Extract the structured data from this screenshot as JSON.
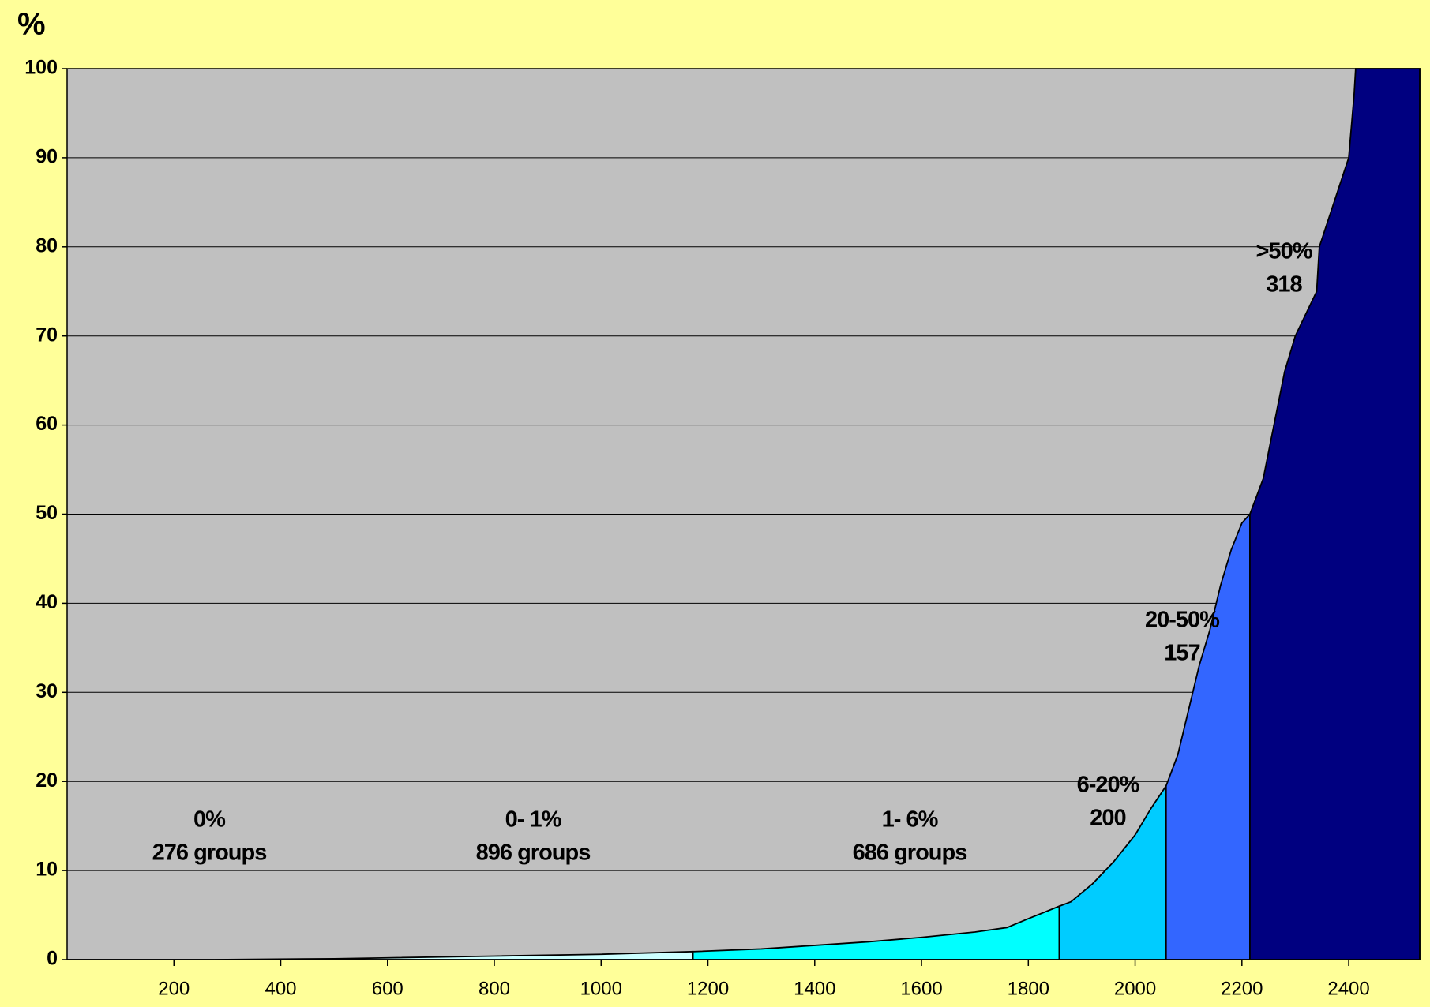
{
  "chart_data": {
    "type": "area",
    "title": "%",
    "xlim": [
      0,
      2533
    ],
    "ylim": [
      0,
      100
    ],
    "xticks": [
      200,
      400,
      600,
      800,
      1000,
      1200,
      1400,
      1600,
      1800,
      2000,
      2200,
      2400
    ],
    "yticks": [
      0,
      10,
      20,
      30,
      40,
      50,
      60,
      70,
      80,
      90,
      100
    ],
    "grid": true,
    "series": [
      {
        "name": "0%",
        "label": "276 groups",
        "color": "#ffffff",
        "x": [
          0,
          276
        ],
        "values": [
          0,
          0
        ]
      },
      {
        "name": "0- 1%",
        "label": "896 groups",
        "color": "#ccffff",
        "x": [
          276,
          500,
          600,
          800,
          1000,
          1172
        ],
        "values": [
          0,
          0.1,
          0.2,
          0.4,
          0.6,
          0.9
        ]
      },
      {
        "name": "1- 6%",
        "label": "686 groups",
        "color": "#00ffff",
        "x": [
          1172,
          1300,
          1400,
          1500,
          1600,
          1700,
          1760,
          1800,
          1858
        ],
        "values": [
          0.9,
          1.2,
          1.6,
          2.0,
          2.5,
          3.1,
          3.6,
          4.6,
          6
        ]
      },
      {
        "name": "6-20%",
        "label": "200",
        "color": "#00ccff",
        "x": [
          1858,
          1880,
          1920,
          1960,
          2000,
          2030,
          2058
        ],
        "values": [
          6,
          6.5,
          8.5,
          11,
          14,
          17,
          19.5
        ]
      },
      {
        "name": "20-50%",
        "label": "157",
        "color": "#3366ff",
        "x": [
          2058,
          2080,
          2100,
          2120,
          2140,
          2160,
          2180,
          2200,
          2215
        ],
        "values": [
          19.5,
          23,
          28,
          33,
          37,
          42,
          46,
          49,
          50
        ]
      },
      {
        "name": ">50%",
        "label": "318",
        "color": "#000080",
        "x": [
          2215,
          2240,
          2260,
          2280,
          2300,
          2340,
          2345,
          2400,
          2410,
          2413,
          2533
        ],
        "values": [
          50,
          54,
          60,
          66,
          70,
          75,
          80,
          90,
          97,
          100,
          100
        ]
      }
    ]
  }
}
